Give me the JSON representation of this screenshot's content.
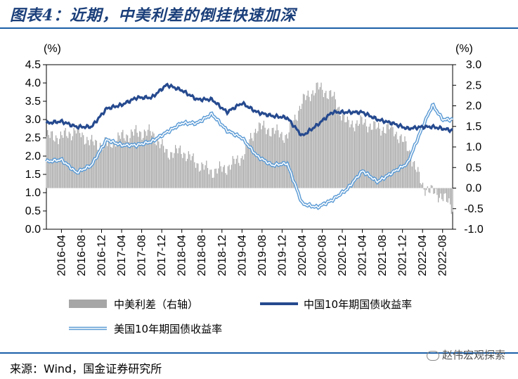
{
  "header": {
    "title": "图表4：近期，中美利差的倒挂快速加深"
  },
  "footer": {
    "source": "来源：Wind，国金证券研究所",
    "watermark": "赵伟宏观探索"
  },
  "chart_data": {
    "type": "line",
    "left_axis_unit": "(%)",
    "right_axis_unit": "(%)",
    "left_ylim": [
      0.0,
      4.5
    ],
    "left_ticks": [
      "0.0",
      "0.5",
      "1.0",
      "1.5",
      "2.0",
      "2.5",
      "3.0",
      "3.5",
      "4.0",
      "4.5"
    ],
    "right_ylim": [
      -1.0,
      3.0
    ],
    "right_ticks": [
      "-1.0",
      "-0.5",
      "0.0",
      "0.5",
      "1.0",
      "1.5",
      "2.0",
      "2.5",
      "3.0"
    ],
    "x_ticks": [
      "2016-04",
      "2016-08",
      "2016-12",
      "2017-04",
      "2017-08",
      "2017-12",
      "2018-04",
      "2018-08",
      "2018-12",
      "2019-04",
      "2019-08",
      "2019-12",
      "2020-04",
      "2020-08",
      "2020-12",
      "2021-04",
      "2021-08",
      "2021-12",
      "2022-04",
      "2022-08"
    ],
    "grid": false,
    "legend_position": "bottom",
    "colors": {
      "spread": "#a6a6a6",
      "china": "#264a8f",
      "us": "#5b9bd5"
    },
    "series": [
      {
        "name": "中美利差（右轴）",
        "kind": "bar",
        "axis": "right",
        "x": [
          "2016-01",
          "2016-04",
          "2016-07",
          "2016-10",
          "2017-01",
          "2017-04",
          "2017-07",
          "2017-10",
          "2018-01",
          "2018-04",
          "2018-07",
          "2018-10",
          "2019-01",
          "2019-04",
          "2019-07",
          "2019-10",
          "2020-01",
          "2020-04",
          "2020-07",
          "2020-10",
          "2021-01",
          "2021-04",
          "2021-07",
          "2021-10",
          "2022-01",
          "2022-04",
          "2022-06",
          "2022-08",
          "2022-10"
        ],
        "y": [
          1.25,
          1.25,
          1.4,
          1.1,
          1.05,
          1.25,
          1.35,
          1.35,
          0.85,
          0.9,
          0.6,
          0.4,
          0.5,
          0.75,
          1.5,
          1.4,
          1.25,
          2.1,
          2.45,
          2.25,
          1.55,
          1.6,
          1.45,
          1.45,
          1.0,
          0.05,
          -0.1,
          -0.2,
          -0.5
        ]
      },
      {
        "name": "中国10年期国债收益率",
        "kind": "line",
        "axis": "left",
        "x": [
          "2016-01",
          "2016-04",
          "2016-07",
          "2016-10",
          "2017-01",
          "2017-04",
          "2017-07",
          "2017-10",
          "2018-01",
          "2018-04",
          "2018-07",
          "2018-10",
          "2019-01",
          "2019-04",
          "2019-07",
          "2019-10",
          "2020-01",
          "2020-04",
          "2020-07",
          "2020-10",
          "2021-01",
          "2021-04",
          "2021-07",
          "2021-10",
          "2022-01",
          "2022-04",
          "2022-06",
          "2022-08",
          "2022-10"
        ],
        "y": [
          2.9,
          2.95,
          2.8,
          2.8,
          3.3,
          3.4,
          3.6,
          3.6,
          3.95,
          3.8,
          3.55,
          3.55,
          3.2,
          3.45,
          3.2,
          3.1,
          3.05,
          2.55,
          2.85,
          3.2,
          3.2,
          3.2,
          3.0,
          2.9,
          2.75,
          2.8,
          2.8,
          2.75,
          2.7
        ]
      },
      {
        "name": "美国10年期国债收益率",
        "kind": "line",
        "axis": "left",
        "x": [
          "2016-01",
          "2016-04",
          "2016-07",
          "2016-10",
          "2017-01",
          "2017-04",
          "2017-07",
          "2017-10",
          "2018-01",
          "2018-04",
          "2018-07",
          "2018-10",
          "2019-01",
          "2019-04",
          "2019-07",
          "2019-10",
          "2020-01",
          "2020-04",
          "2020-07",
          "2020-10",
          "2021-01",
          "2021-04",
          "2021-07",
          "2021-10",
          "2022-01",
          "2022-04",
          "2022-06",
          "2022-08",
          "2022-10"
        ],
        "y": [
          1.85,
          1.9,
          1.55,
          1.75,
          2.45,
          2.3,
          2.3,
          2.4,
          2.65,
          2.9,
          2.9,
          3.15,
          2.7,
          2.5,
          2.0,
          1.75,
          1.8,
          0.7,
          0.6,
          0.8,
          1.1,
          1.6,
          1.3,
          1.55,
          1.8,
          2.8,
          3.4,
          3.0,
          3.0
        ]
      }
    ]
  }
}
